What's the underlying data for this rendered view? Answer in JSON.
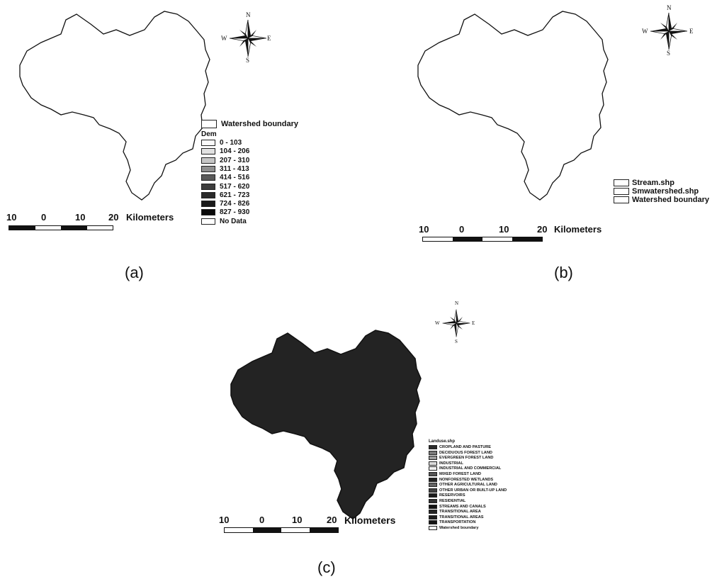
{
  "panel_a": {
    "caption": "(a)",
    "compass": {
      "n": "N",
      "s": "S",
      "e": "E",
      "w": "W"
    },
    "boundary_label": "Watershed boundary",
    "legend_title": "Dem",
    "legend": [
      {
        "label": "0 - 103",
        "color": "#fbfbfb"
      },
      {
        "label": "104 - 206",
        "color": "#e2e2e2"
      },
      {
        "label": "207 - 310",
        "color": "#c6c6c6"
      },
      {
        "label": "311 - 413",
        "color": "#8f8f8f"
      },
      {
        "label": "414 - 516",
        "color": "#5a5a5a"
      },
      {
        "label": "517 - 620",
        "color": "#3d3d3d"
      },
      {
        "label": "621 - 723",
        "color": "#2a2a2a"
      },
      {
        "label": "724 - 826",
        "color": "#1a1a1a"
      },
      {
        "label": "827 - 930",
        "color": "#0a0a0a"
      },
      {
        "label": "No Data",
        "color": "#ffffff"
      }
    ],
    "scale": {
      "ticks": [
        "10",
        "0",
        "10",
        "20"
      ],
      "unit": "Kilometers"
    }
  },
  "panel_b": {
    "caption": "(b)",
    "compass": {
      "n": "N",
      "s": "S",
      "e": "E",
      "w": "W"
    },
    "legend": [
      {
        "label": "Stream.shp",
        "color": "#ffffff"
      },
      {
        "label": "Smwatershed.shp",
        "color": "#ffffff"
      },
      {
        "label": "Watershed boundary",
        "color": "#ffffff"
      }
    ],
    "scale": {
      "ticks": [
        "10",
        "0",
        "10",
        "20"
      ],
      "unit": "Kilometers"
    }
  },
  "panel_c": {
    "caption": "(c)",
    "compass": {
      "n": "N",
      "s": "S",
      "e": "E",
      "w": "W"
    },
    "legend_title": "Landuse.shp",
    "legend": [
      {
        "label": "CROPLAND AND PASTURE",
        "color": "#2b2b2b"
      },
      {
        "label": "DECIDUOUS FOREST LAND",
        "color": "#7a7a7a"
      },
      {
        "label": "EVERGREEN FOREST LAND",
        "color": "#9c9c9c"
      },
      {
        "label": "INDUSTRIAL",
        "color": "#dcdcdc"
      },
      {
        "label": "INDUSTRIAL AND COMMERCIAL",
        "color": "#f2f2f2"
      },
      {
        "label": "MIXED FOREST LAND",
        "color": "#555555"
      },
      {
        "label": "NONFORESTED WETLANDS",
        "color": "#222222"
      },
      {
        "label": "OTHER AGRICULTURAL LAND",
        "color": "#666666"
      },
      {
        "label": "OTHER URBAN OR BUILT-UP LAND",
        "color": "#404040"
      },
      {
        "label": "RESERVOIRS",
        "color": "#1c1c1c"
      },
      {
        "label": "RESIDENTIAL",
        "color": "#303030"
      },
      {
        "label": "STREAMS AND CANALS",
        "color": "#111111"
      },
      {
        "label": "TRANSITIONAL AREA",
        "color": "#262626"
      },
      {
        "label": "TRANSITIONAL AREAS",
        "color": "#1e1e1e"
      },
      {
        "label": "TRANSPORTATION",
        "color": "#161616"
      },
      {
        "label": "Watershed boundary",
        "color": "#ffffff"
      }
    ],
    "scale": {
      "ticks": [
        "10",
        "0",
        "10",
        "20"
      ],
      "unit": "Kilometers"
    }
  }
}
